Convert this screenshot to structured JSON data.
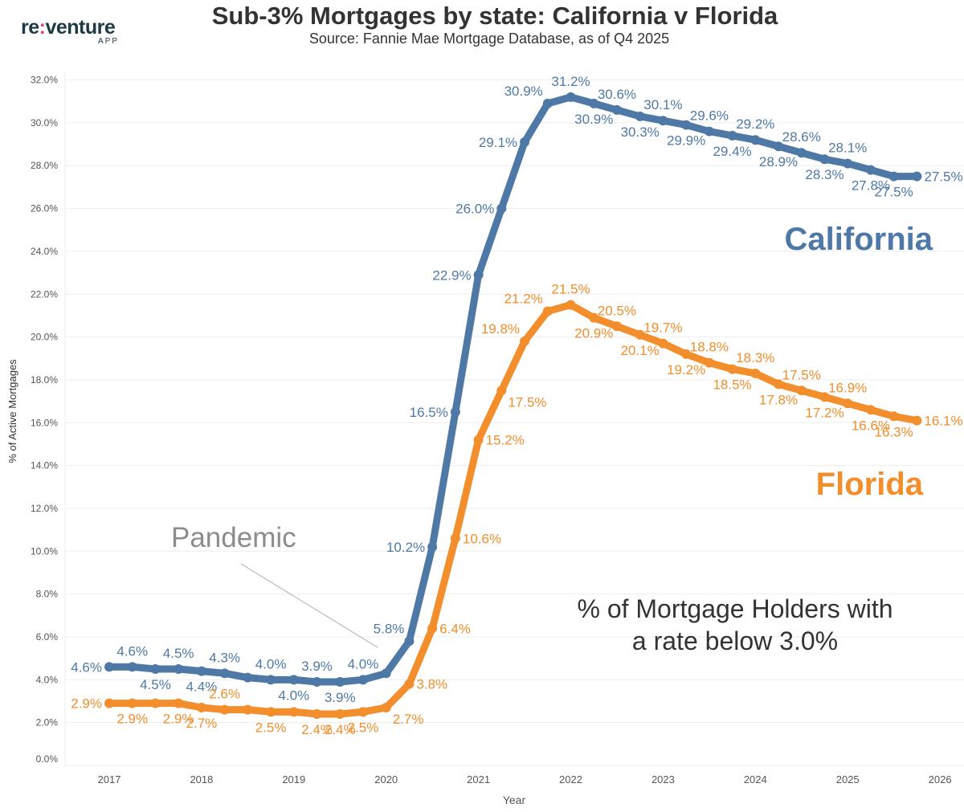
{
  "logo": {
    "text_pre": "re",
    "text_colon": ":",
    "text_post": "venture",
    "sub": "APP"
  },
  "header": {
    "title": "Sub-3% Mortgages by state: California v Florida",
    "subtitle": "Source: Fannie Mae Mortgage Database, as of Q4 2025"
  },
  "chart_data": {
    "type": "line",
    "title": "Sub-3% Mortgages by state: California v Florida",
    "subtitle": "Source: Fannie Mae Mortgage Database, as of Q4 2025",
    "xlabel": "Year",
    "ylabel": "% of Active Mortgages",
    "xlim": [
      2016.5,
      2026.25
    ],
    "ylim": [
      0,
      32
    ],
    "x_ticks": [
      "2017",
      "2018",
      "2019",
      "2020",
      "2021",
      "2022",
      "2023",
      "2024",
      "2025",
      "2026"
    ],
    "y_ticks": [
      "0.0%",
      "2.0%",
      "4.0%",
      "6.0%",
      "8.0%",
      "10.0%",
      "12.0%",
      "14.0%",
      "16.0%",
      "18.0%",
      "20.0%",
      "22.0%",
      "24.0%",
      "26.0%",
      "28.0%",
      "30.0%",
      "32.0%"
    ],
    "grid": "horizontal",
    "x": [
      2017,
      2017.25,
      2017.5,
      2017.75,
      2018,
      2018.25,
      2018.5,
      2018.75,
      2019,
      2019.25,
      2019.5,
      2019.75,
      2020,
      2020.25,
      2020.5,
      2020.75,
      2021,
      2021.25,
      2021.5,
      2021.75,
      2022,
      2022.25,
      2022.5,
      2022.75,
      2023,
      2023.25,
      2023.5,
      2023.75,
      2024,
      2024.25,
      2024.5,
      2024.75,
      2025,
      2025.25,
      2025.5,
      2025.75
    ],
    "series": [
      {
        "name": "California",
        "color": "#4e79a7",
        "values": [
          4.6,
          4.6,
          4.5,
          4.5,
          4.4,
          4.3,
          4.1,
          4.0,
          4.0,
          3.9,
          3.9,
          4.0,
          4.3,
          5.8,
          10.2,
          16.5,
          22.9,
          26.0,
          29.1,
          30.9,
          31.2,
          30.9,
          30.6,
          30.3,
          30.1,
          29.9,
          29.6,
          29.4,
          29.2,
          28.9,
          28.6,
          28.3,
          28.1,
          27.8,
          27.5,
          27.5
        ],
        "label_pos": [
          "left",
          "above",
          "below",
          "above",
          "below",
          "above",
          "none",
          "above",
          "below",
          "above",
          "below",
          "above",
          "none",
          "aboveleft",
          "left",
          "left",
          "left",
          "left",
          "left",
          "aboveleft",
          "above",
          "below",
          "above",
          "below",
          "above",
          "below",
          "above",
          "below",
          "above",
          "below",
          "above",
          "below",
          "above",
          "below",
          "below",
          "right"
        ]
      },
      {
        "name": "Florida",
        "color": "#f28e2b",
        "values": [
          2.9,
          2.9,
          2.9,
          2.9,
          2.7,
          2.6,
          2.6,
          2.5,
          2.5,
          2.4,
          2.4,
          2.5,
          2.7,
          3.8,
          6.4,
          10.6,
          15.2,
          17.5,
          19.8,
          21.2,
          21.5,
          20.9,
          20.5,
          20.1,
          19.7,
          19.2,
          18.8,
          18.5,
          18.3,
          17.8,
          17.5,
          17.2,
          16.9,
          16.6,
          16.3,
          16.1
        ],
        "label_pos": [
          "left",
          "below",
          "none",
          "below",
          "below",
          "above",
          "none",
          "below",
          "none",
          "below",
          "below",
          "below",
          "rightbelow",
          "right",
          "right",
          "right",
          "right",
          "rightbelow",
          "aboveleft",
          "aboveleft",
          "above",
          "below",
          "above",
          "below",
          "above",
          "below",
          "above",
          "below",
          "above",
          "below",
          "above",
          "below",
          "above",
          "below",
          "below",
          "right"
        ]
      }
    ],
    "annotations": [
      "Pandemic",
      "% of Mortgage Holders with",
      "a rate below 3.0%"
    ]
  }
}
